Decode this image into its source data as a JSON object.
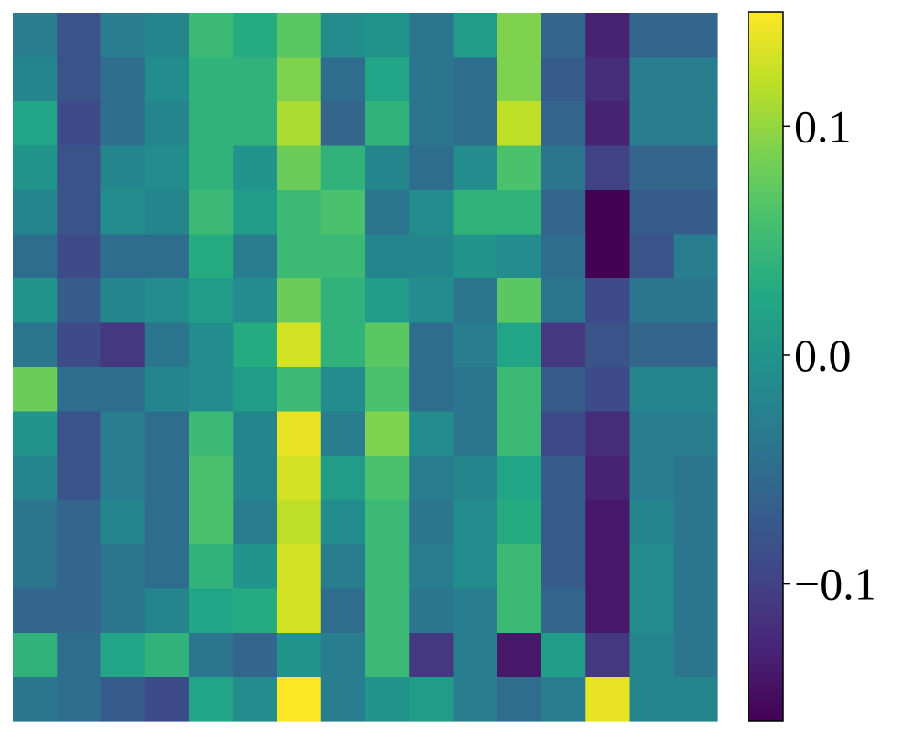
{
  "chart_data": {
    "type": "heatmap",
    "colormap": "viridis",
    "rows": 16,
    "cols": 16,
    "vmin": -0.16,
    "vmax": 0.15,
    "colorbar": {
      "ticks": [
        0.1,
        0.0,
        -0.1
      ],
      "tick_labels": [
        "0.1",
        "0.0",
        "−0.1"
      ]
    },
    "values": [
      [
        -0.03,
        -0.08,
        -0.03,
        -0.02,
        0.05,
        0.03,
        0.07,
        -0.01,
        0.0,
        -0.04,
        0.01,
        0.09,
        -0.06,
        -0.13,
        -0.06,
        -0.06
      ],
      [
        -0.02,
        -0.08,
        -0.05,
        -0.01,
        0.04,
        0.04,
        0.09,
        -0.05,
        0.02,
        -0.04,
        -0.05,
        0.09,
        -0.07,
        -0.12,
        -0.03,
        -0.03
      ],
      [
        0.02,
        -0.09,
        -0.05,
        -0.02,
        0.04,
        0.04,
        0.11,
        -0.06,
        0.04,
        -0.04,
        -0.05,
        0.12,
        -0.06,
        -0.13,
        -0.03,
        -0.03
      ],
      [
        0.0,
        -0.08,
        -0.02,
        -0.01,
        0.04,
        0.0,
        0.08,
        0.04,
        -0.02,
        -0.05,
        -0.01,
        0.06,
        -0.04,
        -0.1,
        -0.06,
        -0.06
      ],
      [
        -0.02,
        -0.08,
        -0.01,
        -0.02,
        0.05,
        0.01,
        0.05,
        0.06,
        -0.04,
        -0.01,
        0.04,
        0.04,
        -0.06,
        -0.16,
        -0.07,
        -0.07
      ],
      [
        -0.05,
        -0.09,
        -0.05,
        -0.05,
        0.03,
        -0.03,
        0.05,
        0.05,
        -0.02,
        -0.02,
        0.0,
        -0.01,
        -0.05,
        -0.16,
        -0.08,
        -0.03
      ],
      [
        0.0,
        -0.07,
        -0.02,
        -0.01,
        0.01,
        -0.01,
        0.08,
        0.04,
        0.01,
        -0.01,
        -0.04,
        0.07,
        -0.04,
        -0.09,
        -0.04,
        -0.04
      ],
      [
        -0.04,
        -0.09,
        -0.11,
        -0.04,
        -0.01,
        0.03,
        0.13,
        0.04,
        0.07,
        -0.05,
        -0.03,
        0.02,
        -0.11,
        -0.08,
        -0.06,
        -0.06
      ],
      [
        0.08,
        -0.05,
        -0.05,
        -0.02,
        -0.01,
        0.01,
        0.05,
        -0.01,
        0.06,
        -0.05,
        -0.04,
        0.05,
        -0.07,
        -0.09,
        -0.02,
        -0.02
      ],
      [
        0.0,
        -0.08,
        -0.03,
        -0.05,
        0.05,
        -0.02,
        0.14,
        -0.03,
        0.09,
        -0.01,
        -0.04,
        0.05,
        -0.09,
        -0.12,
        -0.03,
        -0.03
      ],
      [
        -0.02,
        -0.08,
        -0.03,
        -0.05,
        0.06,
        -0.02,
        0.13,
        0.01,
        0.06,
        -0.03,
        -0.02,
        0.02,
        -0.07,
        -0.13,
        -0.03,
        -0.04
      ],
      [
        -0.04,
        -0.06,
        -0.02,
        -0.05,
        0.06,
        -0.03,
        0.12,
        -0.01,
        0.05,
        -0.04,
        -0.01,
        0.03,
        -0.07,
        -0.14,
        -0.02,
        -0.04
      ],
      [
        -0.04,
        -0.06,
        -0.04,
        -0.05,
        0.04,
        0.0,
        0.13,
        -0.03,
        0.05,
        -0.03,
        -0.01,
        0.05,
        -0.07,
        -0.14,
        -0.01,
        -0.04
      ],
      [
        -0.06,
        -0.06,
        -0.04,
        -0.02,
        0.02,
        0.03,
        0.13,
        -0.05,
        0.05,
        -0.04,
        -0.03,
        0.05,
        -0.06,
        -0.14,
        -0.01,
        -0.04
      ],
      [
        0.04,
        -0.05,
        0.02,
        0.04,
        -0.04,
        -0.06,
        -0.0,
        -0.03,
        0.05,
        -0.11,
        -0.03,
        -0.14,
        0.01,
        -0.11,
        -0.02,
        -0.04
      ],
      [
        -0.04,
        -0.05,
        -0.07,
        -0.09,
        0.02,
        -0.01,
        0.15,
        -0.03,
        0.0,
        0.01,
        -0.03,
        -0.05,
        -0.03,
        0.14,
        -0.02,
        -0.02
      ]
    ]
  }
}
